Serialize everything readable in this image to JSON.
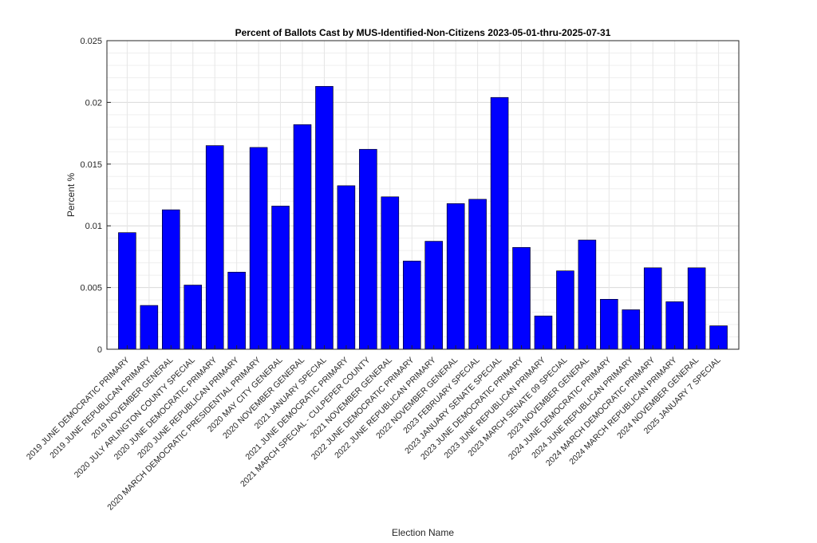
{
  "chart_data": {
    "type": "bar",
    "title": "Percent of Ballots Cast by MUS-Identified-Non-Citizens 2023-05-01-thru-2025-07-31",
    "xlabel": "Election Name",
    "ylabel": "Percent %",
    "ylim": [
      0,
      0.025
    ],
    "yticks": [
      "0",
      "0.005",
      "0.01",
      "0.015",
      "0.02",
      "0.025"
    ],
    "grid": true,
    "bar_color": "#0000ff",
    "categories": [
      "2019 JUNE DEMOCRATIC PRIMARY",
      "2019 JUNE REPUBLICAN PRIMARY",
      "2019 NOVEMBER GENERAL",
      "2020 JULY ARLINGTON COUNTY SPECIAL",
      "2020 JUNE DEMOCRATIC PRIMARY",
      "2020 JUNE REPUBLICAN PRIMARY",
      "2020 MARCH DEMOCRATIC PRESIDENTIAL PRIMARY",
      "2020 MAY CITY GENERAL",
      "2020 NOVEMBER GENERAL",
      "2021 JANUARY SPECIAL",
      "2021 JUNE DEMOCRATIC PRIMARY",
      "2021 MARCH SPECIAL - CULPEPER COUNTY",
      "2021 NOVEMBER GENERAL",
      "2022 JUNE DEMOCRATIC PRIMARY",
      "2022 JUNE REPUBLICAN PRIMARY",
      "2022 NOVEMBER GENERAL",
      "2023 FEBRUARY SPECIAL",
      "2023 JANUARY SENATE SPECIAL",
      "2023 JUNE DEMOCRATIC PRIMARY",
      "2023 JUNE REPUBLICAN PRIMARY",
      "2023 MARCH SENATE 09 SPECIAL",
      "2023 NOVEMBER GENERAL",
      "2024 JUNE DEMOCRATIC PRIMARY",
      "2024 JUNE REPUBLICAN PRIMARY",
      "2024 MARCH DEMOCRATIC PRIMARY",
      "2024 MARCH REPUBLICAN PRIMARY",
      "2024 NOVEMBER GENERAL",
      "2025 JANUARY 7 SPECIAL"
    ],
    "values": [
      0.00945,
      0.00355,
      0.0113,
      0.0052,
      0.0165,
      0.00625,
      0.01635,
      0.0116,
      0.0182,
      0.0213,
      0.01325,
      0.0162,
      0.01235,
      0.00715,
      0.00875,
      0.0118,
      0.01215,
      0.0204,
      0.00825,
      0.0027,
      0.00635,
      0.00885,
      0.00405,
      0.0032,
      0.0066,
      0.00385,
      0.0066,
      0.0019
    ]
  }
}
